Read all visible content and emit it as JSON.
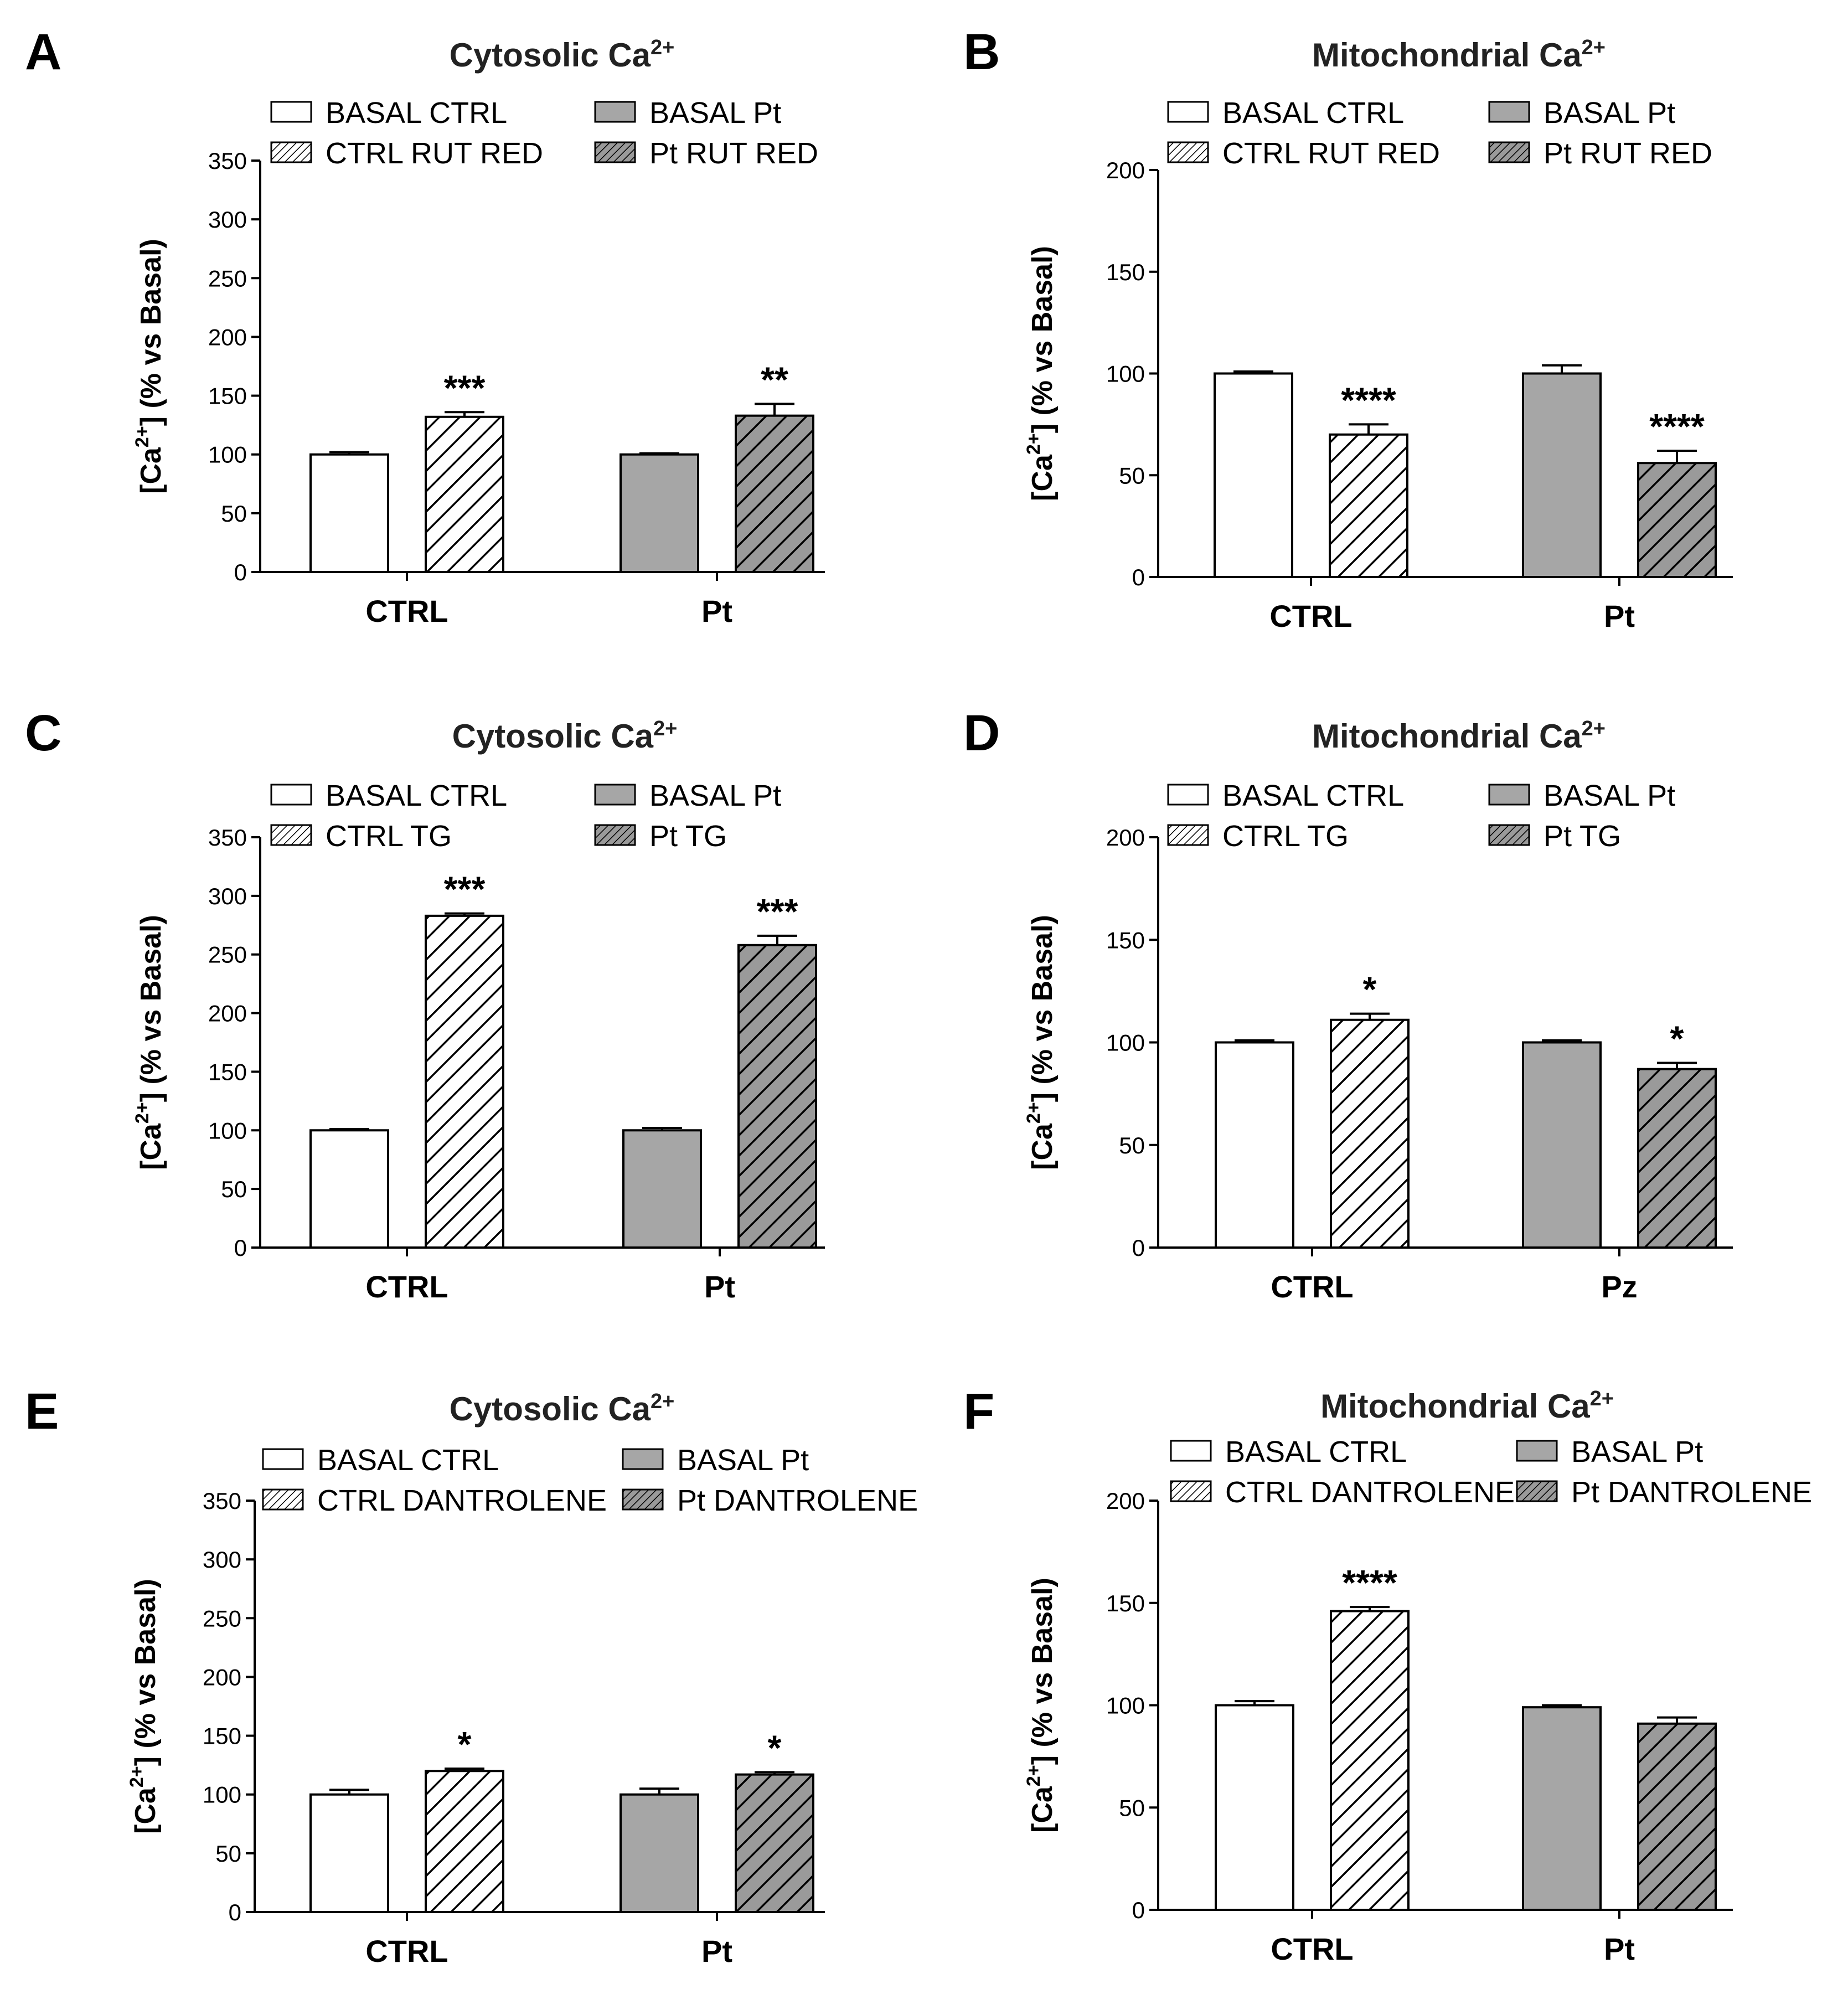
{
  "colors": {
    "white_bar": "#ffffff",
    "gray_bar": "#a6a6a6",
    "dark_gray_bar": "#9a9a9a",
    "ink": "#000000"
  },
  "chart_data": [
    {
      "panel": "A",
      "type": "bar",
      "title": "Cytosolic Ca2+",
      "ylabel": "[Ca2+] (%  vs Basal)",
      "ylim": [
        0,
        350
      ],
      "yticks": [
        0,
        50,
        100,
        150,
        200,
        250,
        300,
        350
      ],
      "categories": [
        "CTRL",
        "Pt"
      ],
      "legend": [
        "BASAL CTRL",
        "BASAL Pt",
        "CTRL RUT RED",
        "Pt RUT RED"
      ],
      "series": [
        {
          "category": "CTRL",
          "value": 100,
          "error": 2,
          "pattern": "white",
          "sig": ""
        },
        {
          "category": "CTRL",
          "value": 132,
          "error": 4,
          "pattern": "white-hatch",
          "sig": "***"
        },
        {
          "category": "Pt",
          "value": 100,
          "error": 1,
          "pattern": "gray",
          "sig": ""
        },
        {
          "category": "Pt",
          "value": 133,
          "error": 10,
          "pattern": "gray-hatch",
          "sig": "**"
        }
      ]
    },
    {
      "panel": "B",
      "type": "bar",
      "title": "Mitochondrial Ca2+",
      "ylabel": "[Ca2+] (%  vs Basal)",
      "ylim": [
        0,
        200
      ],
      "yticks": [
        0,
        50,
        100,
        150,
        200
      ],
      "categories": [
        "CTRL",
        "Pt"
      ],
      "legend": [
        "BASAL CTRL",
        "BASAL Pt",
        "CTRL RUT RED",
        "Pt RUT RED"
      ],
      "series": [
        {
          "category": "CTRL",
          "value": 100,
          "error": 1,
          "pattern": "white",
          "sig": ""
        },
        {
          "category": "CTRL",
          "value": 70,
          "error": 5,
          "pattern": "white-hatch",
          "sig": "****"
        },
        {
          "category": "Pt",
          "value": 100,
          "error": 4,
          "pattern": "gray",
          "sig": ""
        },
        {
          "category": "Pt",
          "value": 56,
          "error": 6,
          "pattern": "gray-hatch",
          "sig": "****"
        }
      ]
    },
    {
      "panel": "C",
      "type": "bar",
      "title": "Cytosolic Ca2+",
      "ylabel": "[Ca2+] (%  vs Basal)",
      "ylim": [
        0,
        350
      ],
      "yticks": [
        0,
        50,
        100,
        150,
        200,
        250,
        300,
        350
      ],
      "categories": [
        "CTRL",
        "Pt"
      ],
      "legend": [
        "BASAL CTRL",
        "BASAL Pt",
        "CTRL TG",
        "Pt TG"
      ],
      "series": [
        {
          "category": "CTRL",
          "value": 100,
          "error": 1,
          "pattern": "white",
          "sig": ""
        },
        {
          "category": "CTRL",
          "value": 283,
          "error": 2,
          "pattern": "white-hatch",
          "sig": "***"
        },
        {
          "category": "Pt",
          "value": 100,
          "error": 2,
          "pattern": "gray",
          "sig": ""
        },
        {
          "category": "Pt",
          "value": 258,
          "error": 8,
          "pattern": "gray-hatch",
          "sig": "***"
        }
      ]
    },
    {
      "panel": "D",
      "type": "bar",
      "title": "Mitochondrial Ca2+",
      "ylabel": "[Ca2+] (%  vs Basal)",
      "ylim": [
        0,
        200
      ],
      "yticks": [
        0,
        50,
        100,
        150,
        200
      ],
      "categories": [
        "CTRL",
        "Pz"
      ],
      "legend": [
        "BASAL CTRL",
        "BASAL Pt",
        "CTRL TG",
        "Pt TG"
      ],
      "series": [
        {
          "category": "CTRL",
          "value": 100,
          "error": 1,
          "pattern": "white",
          "sig": ""
        },
        {
          "category": "CTRL",
          "value": 111,
          "error": 3,
          "pattern": "white-hatch",
          "sig": "*"
        },
        {
          "category": "Pz",
          "value": 100,
          "error": 1,
          "pattern": "gray",
          "sig": ""
        },
        {
          "category": "Pz",
          "value": 87,
          "error": 3,
          "pattern": "gray-hatch",
          "sig": "*"
        }
      ]
    },
    {
      "panel": "E",
      "type": "bar",
      "title": "Cytosolic Ca2+",
      "ylabel": "[Ca2+] (%  vs Basal)",
      "ylim": [
        0,
        350
      ],
      "yticks": [
        0,
        50,
        100,
        150,
        200,
        250,
        300,
        350
      ],
      "categories": [
        "CTRL",
        "Pt"
      ],
      "legend": [
        "BASAL CTRL",
        "BASAL Pt",
        "CTRL DANTROLENE",
        "Pt DANTROLENE"
      ],
      "series": [
        {
          "category": "CTRL",
          "value": 100,
          "error": 4,
          "pattern": "white",
          "sig": ""
        },
        {
          "category": "CTRL",
          "value": 120,
          "error": 2,
          "pattern": "white-hatch",
          "sig": "*"
        },
        {
          "category": "Pt",
          "value": 100,
          "error": 5,
          "pattern": "gray",
          "sig": ""
        },
        {
          "category": "Pt",
          "value": 117,
          "error": 2,
          "pattern": "gray-hatch",
          "sig": "*"
        }
      ]
    },
    {
      "panel": "F",
      "type": "bar",
      "title": "Mitochondrial Ca2+",
      "ylabel": "[Ca2+] (%  vs Basal)",
      "ylim": [
        0,
        200
      ],
      "yticks": [
        0,
        50,
        100,
        150,
        200
      ],
      "categories": [
        "CTRL",
        "Pt"
      ],
      "legend": [
        "BASAL CTRL",
        "BASAL Pt",
        "CTRL DANTROLENE",
        "Pt DANTROLENE"
      ],
      "series": [
        {
          "category": "CTRL",
          "value": 100,
          "error": 2,
          "pattern": "white",
          "sig": ""
        },
        {
          "category": "CTRL",
          "value": 146,
          "error": 2,
          "pattern": "white-hatch",
          "sig": "****"
        },
        {
          "category": "Pt",
          "value": 99,
          "error": 1,
          "pattern": "gray",
          "sig": ""
        },
        {
          "category": "Pt",
          "value": 91,
          "error": 3,
          "pattern": "gray-hatch",
          "sig": ""
        }
      ]
    }
  ]
}
